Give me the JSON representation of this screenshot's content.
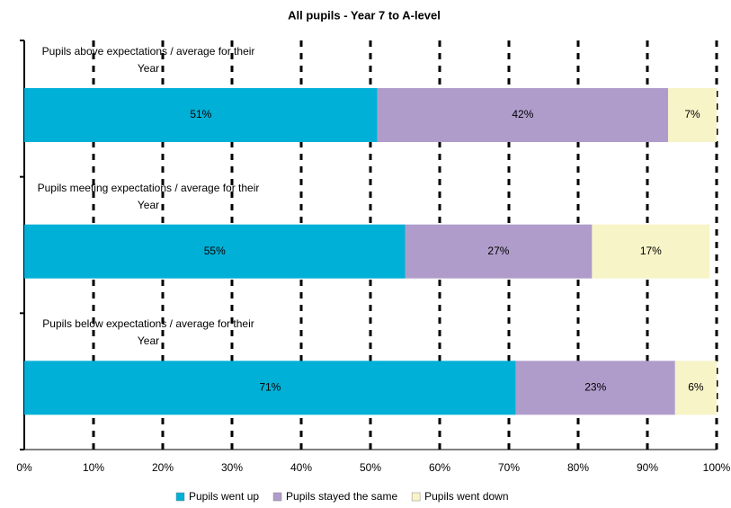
{
  "chart_data": {
    "type": "stacked-bar-horizontal",
    "title": "All pupils - Year 7 to A-level",
    "categories": [
      "Pupils above expectations / average for their Year",
      "Pupils meeting expectations / average for their Year",
      "Pupils below expectations / average for their Year"
    ],
    "series": [
      {
        "name": "Pupils went up",
        "color": "#00b0d6",
        "values": [
          51,
          55,
          71
        ],
        "value_labels": [
          "51%",
          "55%",
          "71%"
        ]
      },
      {
        "name": "Pupils stayed the same",
        "color": "#b09ccb",
        "values": [
          42,
          27,
          23
        ],
        "value_labels": [
          "42%",
          "27%",
          "23%"
        ]
      },
      {
        "name": "Pupils went down",
        "color": "#f7f4c8",
        "values": [
          7,
          17,
          6
        ],
        "value_labels": [
          "7%",
          "17%",
          "6%"
        ]
      }
    ],
    "xlim": [
      0,
      100
    ],
    "xticks": [
      {
        "value": 0,
        "label": "0%"
      },
      {
        "value": 10,
        "label": "10%"
      },
      {
        "value": 20,
        "label": "20%"
      },
      {
        "value": 30,
        "label": "30%"
      },
      {
        "value": 40,
        "label": "40%"
      },
      {
        "value": 50,
        "label": "50%"
      },
      {
        "value": 60,
        "label": "60%"
      },
      {
        "value": 70,
        "label": "70%"
      },
      {
        "value": 80,
        "label": "80%"
      },
      {
        "value": 90,
        "label": "90%"
      },
      {
        "value": 100,
        "label": "100%"
      }
    ],
    "grid": true,
    "legend": "bottom"
  }
}
